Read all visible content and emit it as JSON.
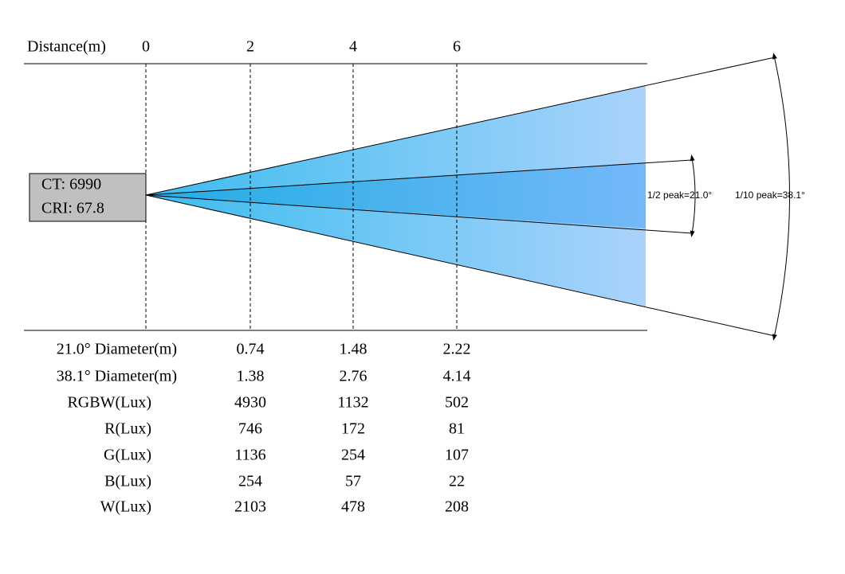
{
  "distance_label": "Distance(m)",
  "distance_ticks": [
    "0",
    "2",
    "4",
    "6"
  ],
  "source_box": {
    "ct": "CT: 6990",
    "cri": "CRI: 67.8"
  },
  "angles": {
    "half_peak": "1/2 peak=21.0°",
    "tenth_peak": "1/10 peak=38.1°"
  },
  "table": {
    "rows": [
      [
        "21.0° Diameter(m)",
        "0.74",
        "1.48",
        "2.22"
      ],
      [
        "38.1° Diameter(m)",
        "1.38",
        "2.76",
        "4.14"
      ],
      [
        "RGBW(Lux)",
        "4930",
        "1132",
        "502"
      ],
      [
        "R(Lux)",
        "746",
        "172",
        "81"
      ],
      [
        "G(Lux)",
        "1136",
        "254",
        "107"
      ],
      [
        "B(Lux)",
        "254",
        "57",
        "22"
      ],
      [
        "W(Lux)",
        "2103",
        "478",
        "208"
      ]
    ]
  }
}
